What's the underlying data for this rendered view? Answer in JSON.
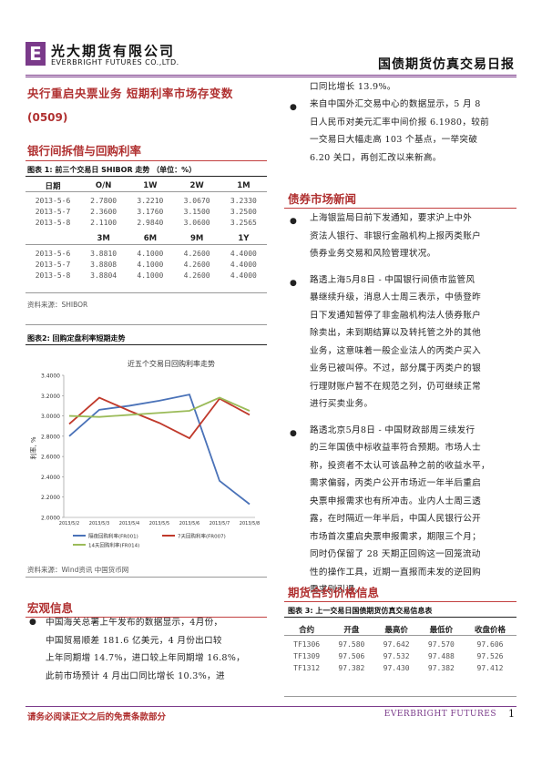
{
  "header": {
    "logo_mark": "E",
    "company_cn": "光大期货有限公司",
    "company_en": "EVERBRIGHT FUTURES CO.,LTD.",
    "report_title": "国债期货仿真交易日报"
  },
  "headline": "央行重启央票业务 短期利率市场存变数",
  "date": "(0509)",
  "section_interbank": "银行间拆借与回购利率",
  "table1": {
    "caption": "图表 1: 前三个交易日 SHIBOR 走势 （单位：%）",
    "header1": [
      "日期",
      "O/N",
      "1W",
      "2W",
      "1M"
    ],
    "rows1": [
      [
        "2013-5-6",
        "2.7800",
        "3.2210",
        "3.0670",
        "3.2330"
      ],
      [
        "2013-5-7",
        "2.3600",
        "3.1760",
        "3.1500",
        "3.2500"
      ],
      [
        "2013-5-8",
        "2.1100",
        "2.9840",
        "3.0600",
        "3.2565"
      ]
    ],
    "header2": [
      "",
      "3M",
      "6M",
      "9M",
      "1Y"
    ],
    "rows2": [
      [
        "2013-5-6",
        "3.8810",
        "4.1000",
        "4.2600",
        "4.4000"
      ],
      [
        "2013-5-7",
        "3.8808",
        "4.1000",
        "4.2600",
        "4.4000"
      ],
      [
        "2013-5-8",
        "3.8804",
        "4.1000",
        "4.2600",
        "4.4000"
      ]
    ],
    "source": "资料来源：SHIBOR"
  },
  "chart2_caption": "图表2: 回购定盘利率短期走势",
  "chart2_source": "资料来源：Wind资讯 中国货币网",
  "chart_data": {
    "type": "line",
    "title": "近五个交易日回购利率走势",
    "ylabel": "利率, %",
    "xlabel": "",
    "categories": [
      "2013/5/2",
      "2013/5/3",
      "2013/5/4",
      "2013/5/5",
      "2013/5/6",
      "2013/5/7",
      "2013/5/8"
    ],
    "ylim": [
      2.0,
      3.4
    ],
    "yticks": [
      "3.4000",
      "3.2000",
      "3.0000",
      "2.8000",
      "2.6000",
      "2.4000",
      "2.2000",
      "2.0000"
    ],
    "series": [
      {
        "name": "隔夜回购利率(FR001)",
        "color": "#4a72b8",
        "values": [
          2.8,
          3.06,
          3.1,
          3.15,
          3.21,
          2.36,
          2.13
        ]
      },
      {
        "name": "7天回购利率(FR007)",
        "color": "#c0392b",
        "values": [
          2.92,
          3.18,
          3.05,
          2.93,
          2.78,
          3.17,
          3.01
        ]
      },
      {
        "name": "14天回购利率(FR014)",
        "color": "#9bbb59",
        "values": [
          3.0,
          2.99,
          3.01,
          3.03,
          3.05,
          3.18,
          3.05
        ]
      }
    ]
  },
  "section_macro": "宏观信息",
  "macro_para": "中国海关总署上午发布的数据显示，4月份，中国贸易顺差181.6亿美元，4月份出口较上年同期增14.7%，进口较上年同期增16.8%，此前市场预计4月出口同比增长10.3%，进口同比增长13.9%。",
  "macro_lines": [
    "中国海关总署上午发布的数据显示，4月份，",
    "中国贸易顺差 181.6 亿美元，4 月份出口较",
    "上年同期增 14.7%，进口较上年同期增 16.8%，",
    "此前市场预计 4 月出口同比增长 10.3%，进"
  ],
  "right_top_line": "口同比增长 13.9%。",
  "right_bullet1_lines": [
    "来自中国外汇交易中心的数据显示，5 月 8",
    "日人民币对美元汇率中间价报 6.1980，较前",
    "一交易日大幅走高 103 个基点，一举突破",
    "6.20 关口，再创汇改以来新高。"
  ],
  "section_bond": "债券市场新闻",
  "bond_bullets": [
    [
      "上海银监局日前下发通知，要求沪上中外",
      "资法人银行、非银行金融机构上报丙类账户",
      "债券业务交易和风险管理状况。"
    ],
    [
      "路透上海5月8日 - 中国银行间债市监管风",
      "暴继续升级，消息人士周三表示，中债登昨",
      "日下发通知暂停了非金融机构法人债券账户",
      "除卖出，未到期结算以及转托管之外的其他",
      "业务，这意味着一般企业法人的丙类户买入",
      "业务已被叫停。不过，部分属于丙类户的银",
      "行理财账户暂不在规范之列，仍可继续正常",
      "进行买卖业务。"
    ],
    [
      "路透北京5月8日 - 中国财政部周三续发行",
      "的三年国债中标收益率符合预期。市场人士",
      "称，投资者不太认可该品种之前的收益水平，",
      "需求偏弱，丙类户公开市场近一年半后重启",
      "央票申报需求也有所冲击。业内人士周三透",
      "露，在时隔近一年半后，中国人民银行公开",
      "市场首次重启央票申报需求，期限三个月；",
      "同时仍保留了 28 天期正回购这一回笼流动",
      "性的操作工具，近期一直报而未发的逆回购",
      "需求则引退。"
    ]
  ],
  "section_futures": "期货合约价格信息",
  "table3": {
    "caption": "图表 3: 上一交易日国债期货仿真交易信息表",
    "header": [
      "合约",
      "开盘",
      "最高价",
      "最低价",
      "收盘价格"
    ],
    "rows": [
      [
        "TF1306",
        "97.580",
        "97.642",
        "97.570",
        "97.606"
      ],
      [
        "TF1309",
        "97.506",
        "97.532",
        "97.488",
        "97.526"
      ],
      [
        "TF1312",
        "97.382",
        "97.430",
        "97.382",
        "97.412"
      ]
    ]
  },
  "footer": {
    "disclaimer": "请务必阅读正文之后的免责条款部分",
    "brand": "EVERBRIGHT FUTURES",
    "page": "1"
  }
}
